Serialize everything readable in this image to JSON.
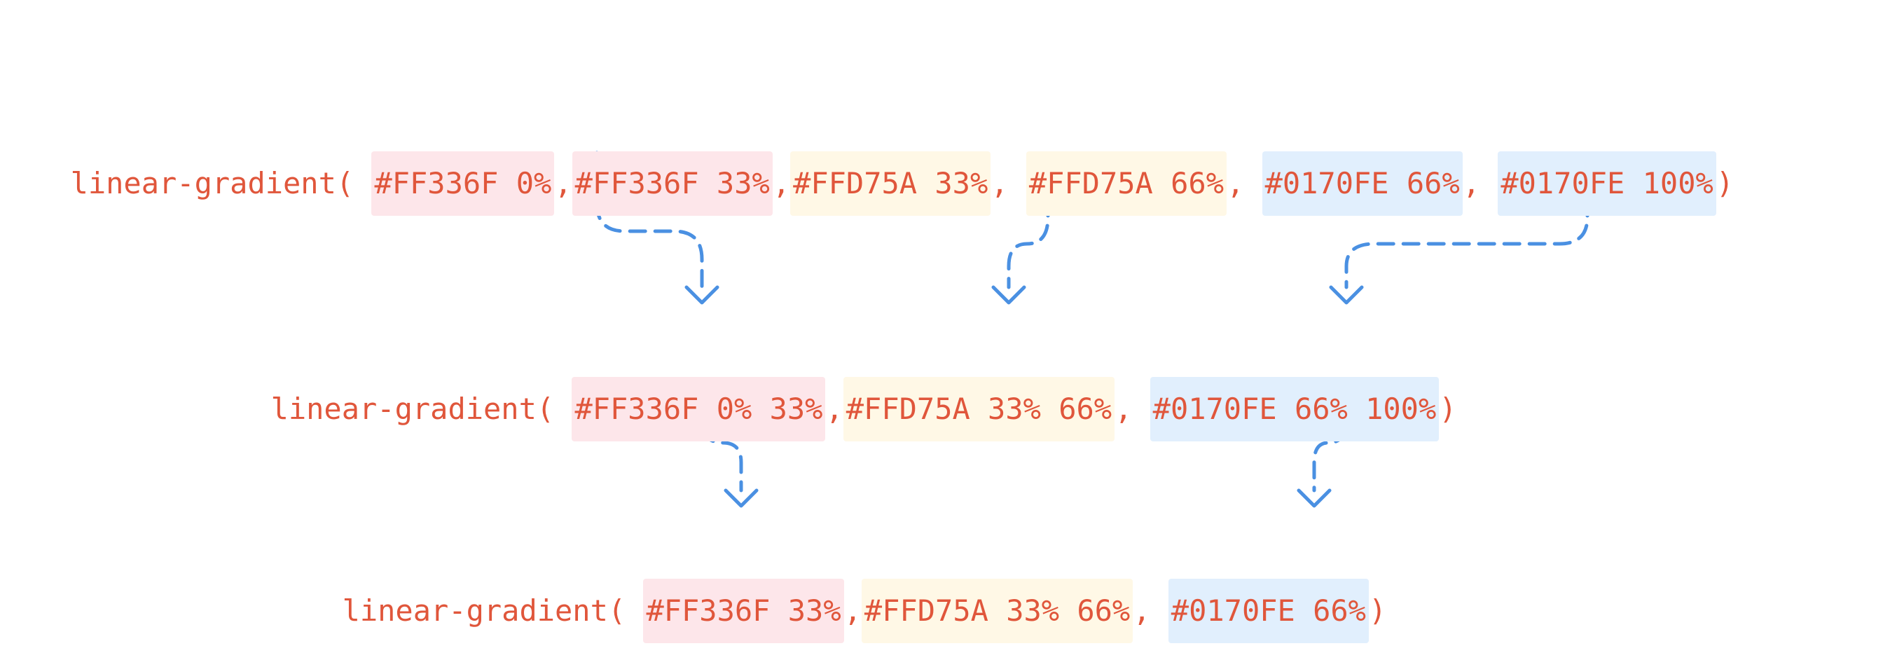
{
  "colors": {
    "text": "#E0563B",
    "arrow": "#4A90E2",
    "pink_highlight": "#FDE6EA",
    "yellow_highlight": "#FFF8E6",
    "blue_highlight": "#E1EFFD"
  },
  "row1": {
    "prefix": "linear-gradient(",
    "s1": "#FF336F 0%",
    "c1": ",",
    "s2": "#FF336F 33%",
    "c2": ",",
    "s3": "#FFD75A 33%",
    "c3": ",",
    "s4": "#FFD75A 66%",
    "c4": ",",
    "s5": "#0170FE 66%",
    "c5": ",",
    "s6": "#0170FE 100%",
    "suffix": ")"
  },
  "row2": {
    "prefix": "linear-gradient(",
    "s1": "#FF336F 0% 33%",
    "c1": ",",
    "s2": "#FFD75A 33% 66%",
    "c2": ",",
    "s3": "#0170FE 66% 100%",
    "suffix": ")"
  },
  "row3": {
    "prefix": "linear-gradient(",
    "s1": "#FF336F 33%",
    "c1": ",",
    "s2": "#FFD75A 33% 66%",
    "c2": ",",
    "s3": "#0170FE 66%",
    "suffix": ")"
  }
}
